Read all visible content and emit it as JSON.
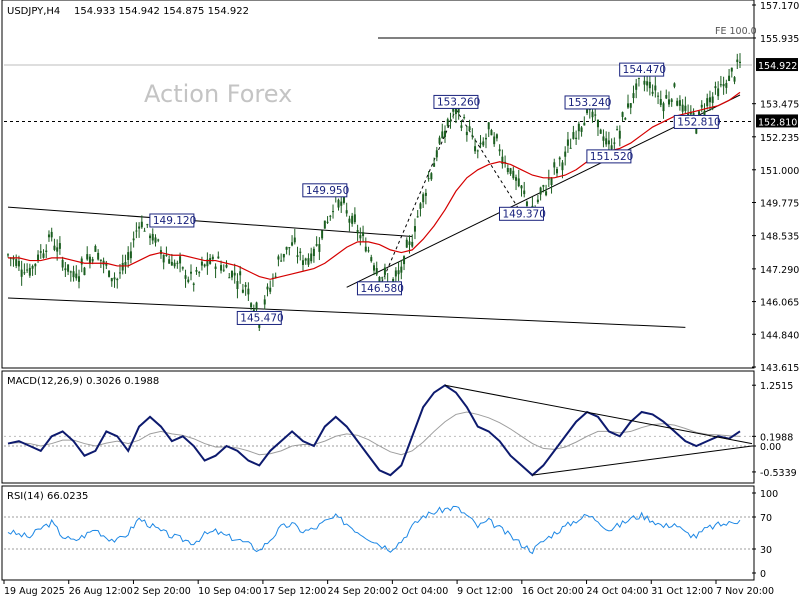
{
  "header": {
    "symbol": "USDJPY,H4",
    "ohlc": "154.933 154.942 154.875 154.922"
  },
  "watermark": "Action Forex",
  "colors": {
    "candles": "#1b5e20",
    "ma": "#d50000",
    "macd_line": "#0d1a6e",
    "macd_signal": "#9e9e9e",
    "rsi": "#1e88e5",
    "trendline": "#000000",
    "label_text": "#1a237e"
  },
  "chart_data": [
    {
      "type": "line",
      "name": "price",
      "title": "USDJPY,H4",
      "ylim": [
        143.615,
        157.17
      ],
      "y_ticks": [
        "157.170",
        "155.935",
        "154.922",
        "153.475",
        "152.810",
        "152.235",
        "151.000",
        "149.775",
        "148.535",
        "147.290",
        "146.065",
        "144.840",
        "143.615"
      ],
      "x_ticks": [
        "19 Aug 2025",
        "26 Aug 12:00",
        "2 Sep 20:00",
        "10 Sep 04:00",
        "17 Sep 12:00",
        "24 Sep 20:00",
        "2 Oct 04:00",
        "9 Oct 12:00",
        "16 Oct 20:00",
        "24 Oct 04:00",
        "31 Oct 12:00",
        "7 Nov 20:00"
      ],
      "series": [
        {
          "values": [
            147.8,
            147.5,
            147.2,
            147.9,
            148.5,
            147.6,
            147.0,
            147.5,
            148.0,
            147.3,
            146.9,
            147.6,
            149.1,
            148.6,
            148.0,
            147.6,
            147.2,
            146.8,
            147.4,
            147.6,
            147.3,
            147.0,
            146.5,
            145.5,
            146.6,
            147.8,
            148.2,
            147.6,
            147.9,
            148.9,
            149.9,
            149.4,
            148.7,
            148.0,
            147.2,
            146.6,
            147.2,
            148.5,
            150.0,
            151.3,
            152.5,
            153.2,
            152.6,
            151.6,
            152.4,
            151.8,
            151.0,
            150.2,
            149.4,
            150.2,
            150.9,
            151.5,
            152.4,
            153.2,
            152.7,
            151.8,
            152.5,
            153.6,
            154.4,
            154.1,
            153.5,
            154.0,
            153.1,
            152.8,
            153.6,
            153.9,
            154.4,
            154.922
          ]
        }
      ],
      "moving_average": [
        147.7,
        147.7,
        147.6,
        147.6,
        147.7,
        147.7,
        147.6,
        147.5,
        147.5,
        147.5,
        147.4,
        147.4,
        147.6,
        147.8,
        147.9,
        147.8,
        147.8,
        147.7,
        147.6,
        147.6,
        147.5,
        147.4,
        147.2,
        147.0,
        146.9,
        147.0,
        147.1,
        147.2,
        147.3,
        147.5,
        147.8,
        148.1,
        148.3,
        148.3,
        148.2,
        148.0,
        147.9,
        148.0,
        148.4,
        148.9,
        149.5,
        150.2,
        150.7,
        151.0,
        151.2,
        151.3,
        151.2,
        151.0,
        150.8,
        150.7,
        150.7,
        150.8,
        151.0,
        151.3,
        151.6,
        151.7,
        151.8,
        152.0,
        152.3,
        152.6,
        152.8,
        153.0,
        153.1,
        153.2,
        153.3,
        153.4,
        153.6,
        153.9
      ],
      "annotations": [
        "149.120",
        "149.950",
        "145.470",
        "146.580",
        "153.260",
        "149.370",
        "153.240",
        "151.520",
        "154.470",
        "152.810",
        "FE 100.0"
      ],
      "price_label": "154.922",
      "level_label": "152.810"
    },
    {
      "type": "line",
      "name": "macd",
      "title": "MACD(12,26,9) 0.3026 0.1988",
      "ylim": [
        -0.7,
        1.4
      ],
      "y_ticks": [
        "1.2515",
        "0.1988",
        "0.00",
        "-0.5339"
      ],
      "series": [
        {
          "values": [
            0.05,
            0.1,
            0.0,
            -0.1,
            0.2,
            0.3,
            0.1,
            -0.2,
            -0.1,
            0.3,
            0.2,
            -0.1,
            0.4,
            0.6,
            0.4,
            0.1,
            0.2,
            0.0,
            -0.3,
            -0.2,
            0.0,
            -0.1,
            -0.3,
            -0.4,
            -0.1,
            0.1,
            0.3,
            0.1,
            0.0,
            0.4,
            0.6,
            0.4,
            0.1,
            -0.2,
            -0.5,
            -0.6,
            -0.4,
            0.2,
            0.8,
            1.1,
            1.25,
            1.1,
            0.8,
            0.4,
            0.3,
            0.1,
            -0.2,
            -0.4,
            -0.6,
            -0.4,
            -0.1,
            0.2,
            0.5,
            0.7,
            0.6,
            0.3,
            0.2,
            0.5,
            0.7,
            0.65,
            0.5,
            0.3,
            0.1,
            0.0,
            0.1,
            0.2,
            0.15,
            0.3026
          ]
        },
        {
          "values": [
            0.05,
            0.07,
            0.05,
            0.0,
            0.05,
            0.12,
            0.12,
            0.05,
            0.0,
            0.06,
            0.1,
            0.05,
            0.12,
            0.25,
            0.3,
            0.25,
            0.22,
            0.15,
            0.05,
            -0.02,
            -0.02,
            -0.04,
            -0.1,
            -0.18,
            -0.16,
            -0.1,
            0.0,
            0.03,
            0.03,
            0.1,
            0.2,
            0.25,
            0.22,
            0.13,
            0.0,
            -0.12,
            -0.18,
            -0.1,
            0.08,
            0.3,
            0.5,
            0.65,
            0.7,
            0.65,
            0.58,
            0.48,
            0.35,
            0.2,
            0.05,
            -0.05,
            -0.07,
            -0.02,
            0.08,
            0.2,
            0.3,
            0.3,
            0.27,
            0.3,
            0.38,
            0.44,
            0.46,
            0.43,
            0.36,
            0.28,
            0.24,
            0.23,
            0.21,
            0.1988
          ]
        }
      ]
    },
    {
      "type": "line",
      "name": "rsi",
      "title": "RSI(14) 66.0235",
      "ylim": [
        0,
        100
      ],
      "y_ticks": [
        "100",
        "70",
        "30",
        "0"
      ],
      "series": [
        {
          "values": [
            52,
            48,
            45,
            56,
            63,
            46,
            40,
            47,
            55,
            45,
            40,
            50,
            68,
            60,
            52,
            46,
            42,
            38,
            48,
            52,
            46,
            42,
            36,
            28,
            42,
            57,
            61,
            52,
            55,
            64,
            70,
            62,
            52,
            44,
            36,
            30,
            40,
            58,
            71,
            76,
            80,
            82,
            72,
            58,
            65,
            56,
            46,
            36,
            28,
            40,
            50,
            58,
            66,
            72,
            66,
            54,
            60,
            68,
            72,
            66,
            58,
            62,
            50,
            46,
            56,
            60,
            62,
            66
          ]
        }
      ]
    }
  ]
}
